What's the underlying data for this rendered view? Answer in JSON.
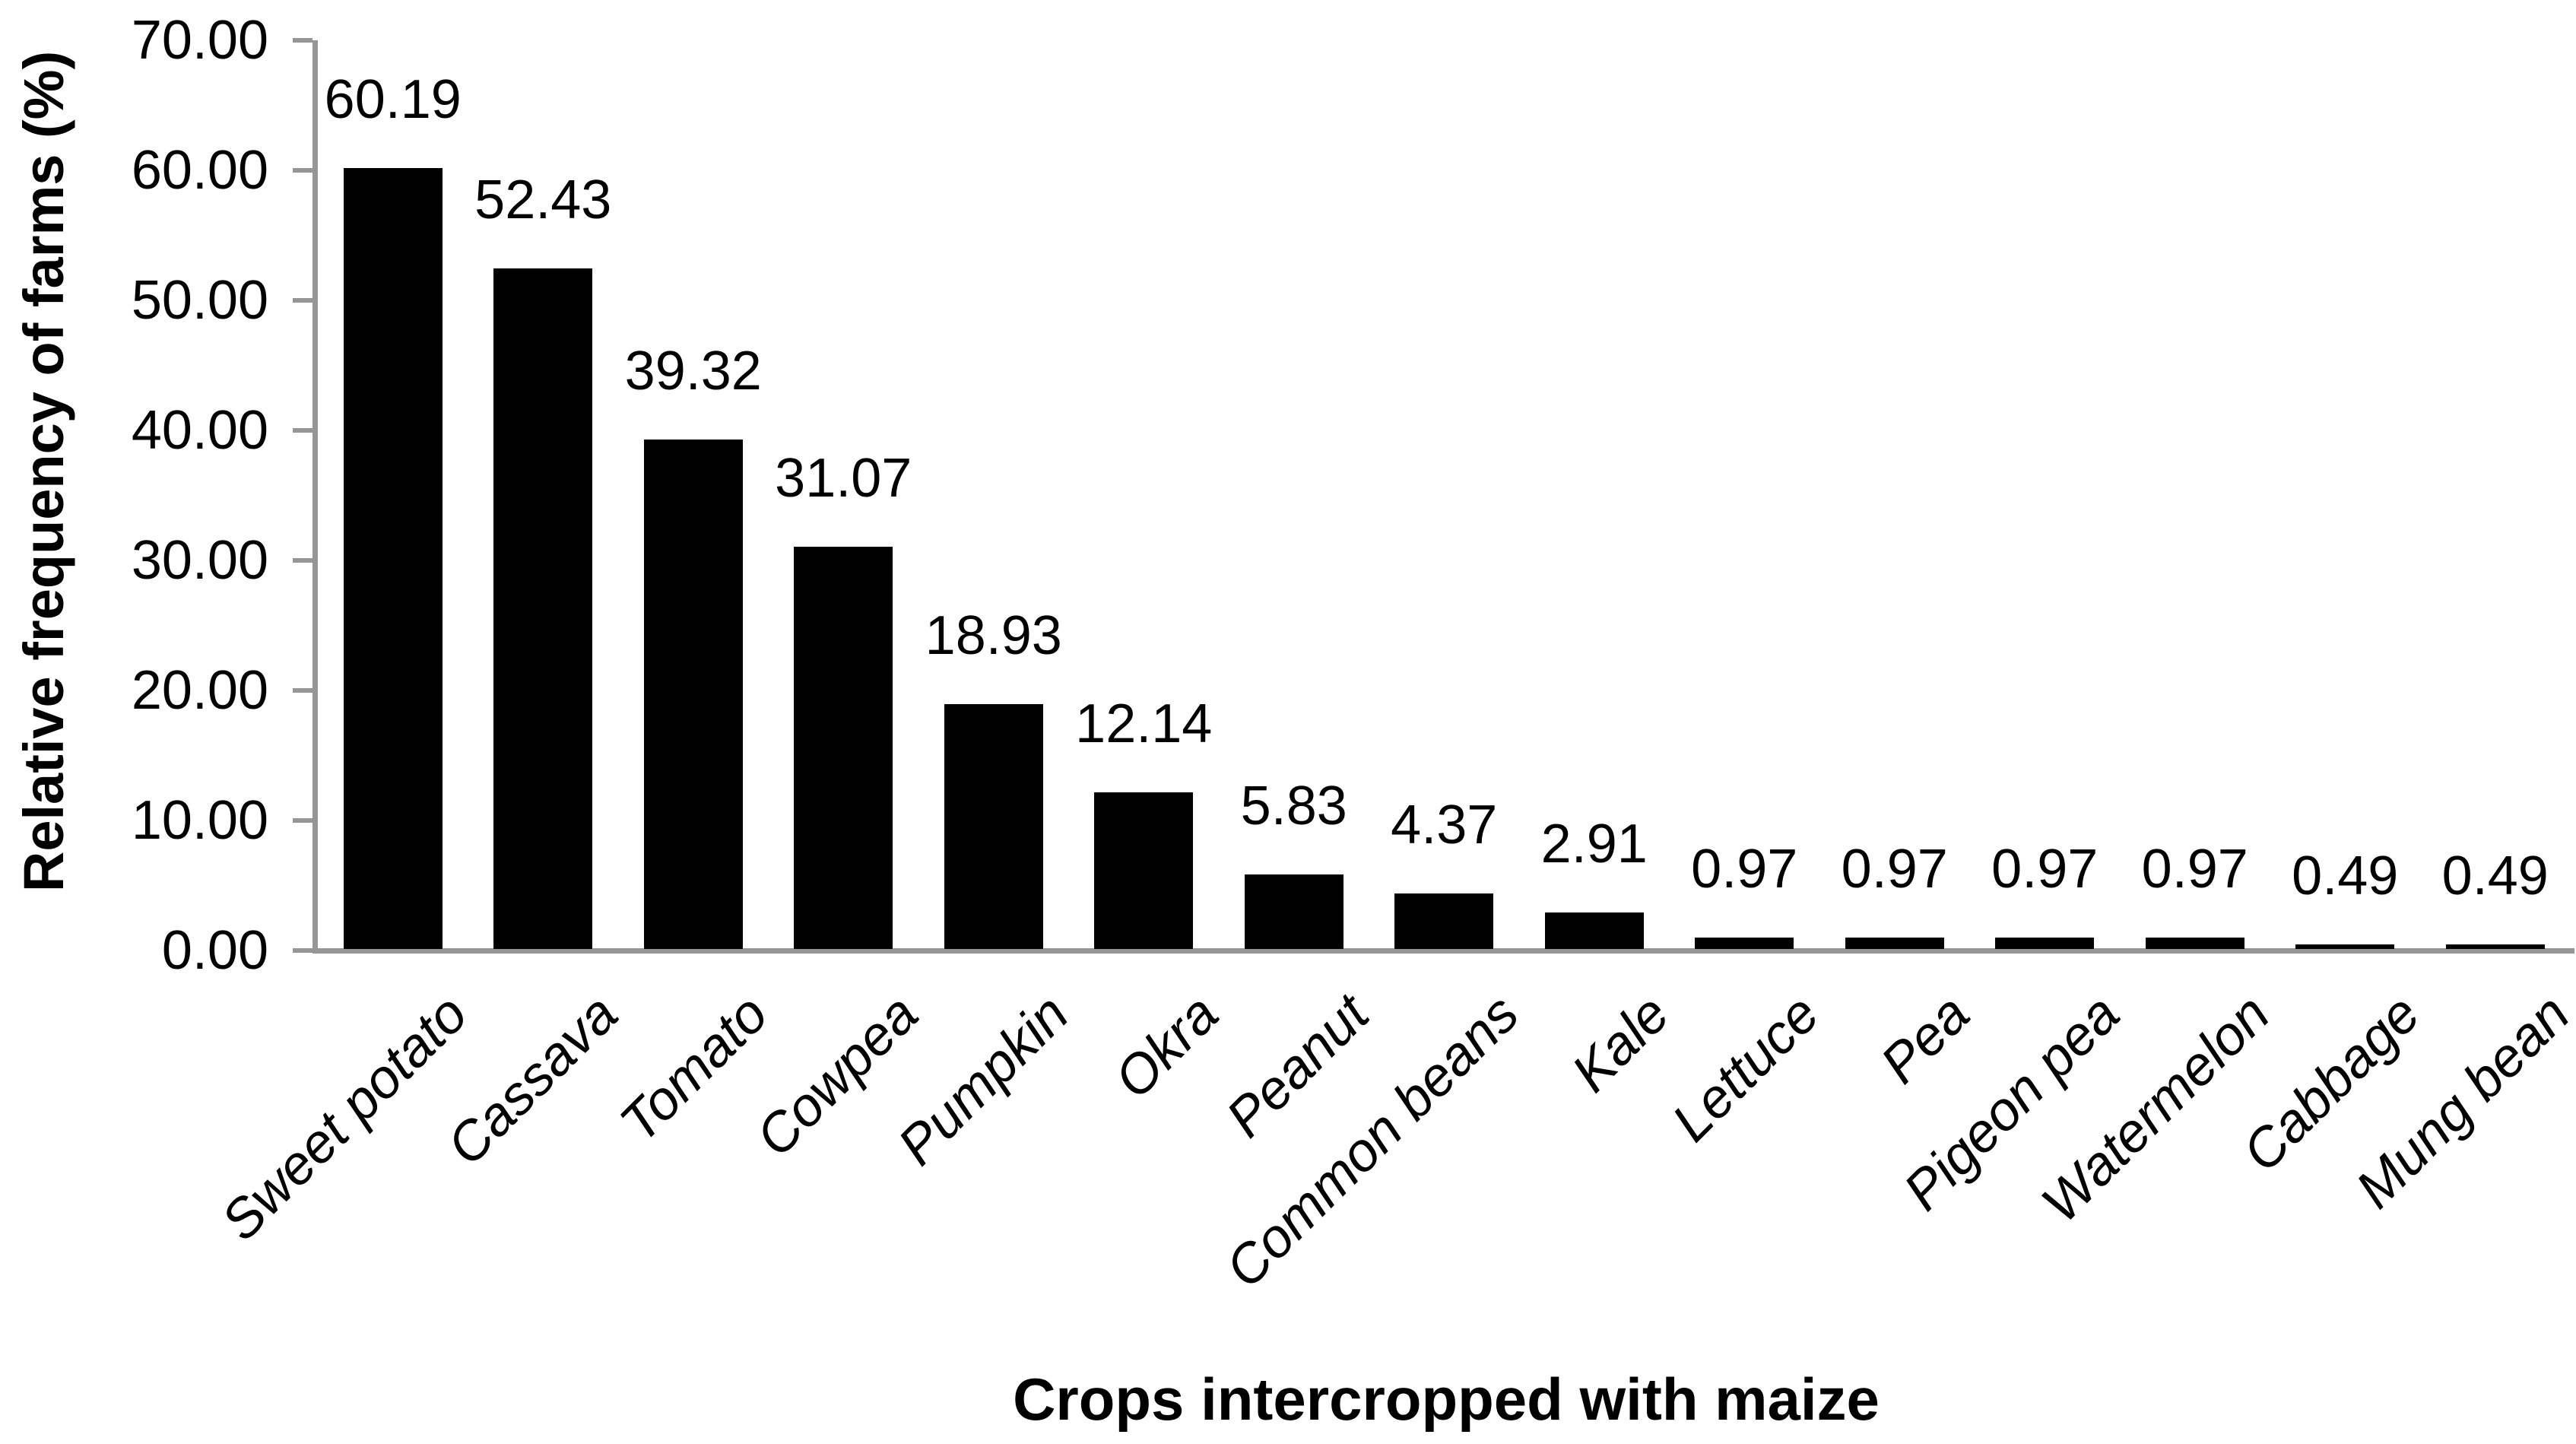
{
  "chart_data": {
    "type": "bar",
    "title": "",
    "xlabel": "Crops intercropped with maize",
    "ylabel": "Relative frequency of farms (%)",
    "categories": [
      "Sweet potato",
      "Cassava",
      "Tomato",
      "Cowpea",
      "Pumpkin",
      "Okra",
      "Peanut",
      "Common beans",
      "Kale",
      "Lettuce",
      "Pea",
      "Pigeon pea",
      "Watermelon",
      "Cabbage",
      "Mung bean"
    ],
    "values": [
      60.19,
      52.43,
      39.32,
      31.07,
      18.93,
      12.14,
      5.83,
      4.37,
      2.91,
      0.97,
      0.97,
      0.97,
      0.97,
      0.49,
      0.49
    ],
    "value_labels": [
      "60.19",
      "52.43",
      "39.32",
      "31.07",
      "18.93",
      "12.14",
      "5.83",
      "4.37",
      "2.91",
      "0.97",
      "0.97",
      "0.97",
      "0.97",
      "0.49",
      "0.49"
    ],
    "y_axis": {
      "min": 0,
      "max": 70,
      "tick_step": 10,
      "ticks": [
        {
          "value": 70,
          "label": "70.00"
        },
        {
          "value": 60,
          "label": "60.00"
        },
        {
          "value": 50,
          "label": "50.00"
        },
        {
          "value": 40,
          "label": "40.00"
        },
        {
          "value": 30,
          "label": "30.00"
        },
        {
          "value": 20,
          "label": "20.00"
        },
        {
          "value": 10,
          "label": "10.00"
        },
        {
          "value": 0,
          "label": "0.00"
        }
      ]
    },
    "legend": "none",
    "grid": "off",
    "colors": {
      "bar": "#000000",
      "axis": "#969696",
      "text": "#000000",
      "background": "#ffffff"
    },
    "category_label_style": "rotated-45-italic"
  }
}
